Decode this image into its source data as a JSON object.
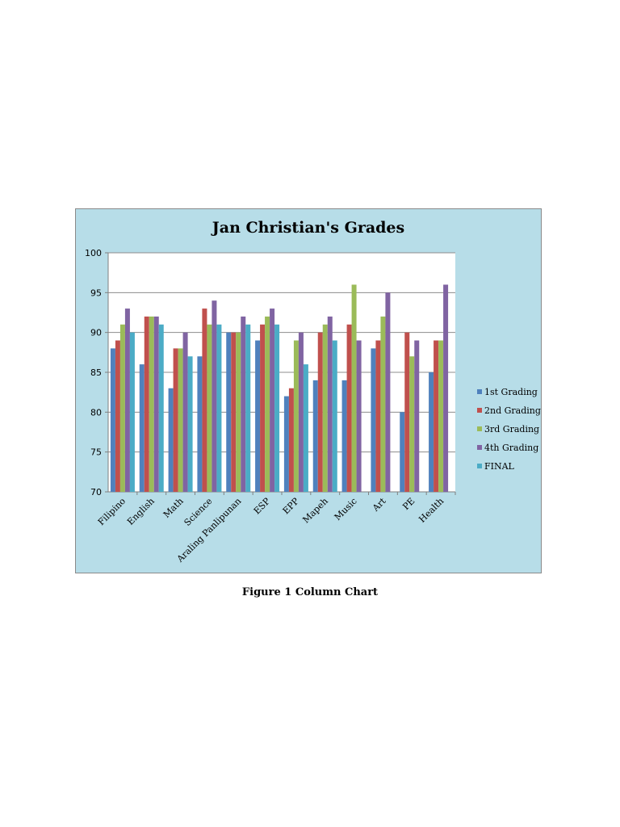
{
  "figure_caption": "Figure 1 Column Chart",
  "chart_data": {
    "type": "bar",
    "title": "Jan Christian's Grades",
    "xlabel": "",
    "ylabel": "",
    "ylim": [
      70,
      100
    ],
    "yticks": [
      70,
      75,
      80,
      85,
      90,
      95,
      100
    ],
    "grid": true,
    "legend_position": "right",
    "categories": [
      "Filipino",
      "English",
      "Math",
      "Science",
      "Araling Panlipunan",
      "ESP",
      "EPP",
      "Mapeh",
      "Music",
      "Art",
      "PE",
      "Health"
    ],
    "series": [
      {
        "name": "1st Grading",
        "color": "#4f81bd",
        "values": [
          88,
          86,
          83,
          87,
          90,
          89,
          82,
          84,
          84,
          88,
          80,
          85
        ]
      },
      {
        "name": "2nd Grading",
        "color": "#c0504d",
        "values": [
          89,
          92,
          88,
          93,
          90,
          91,
          83,
          90,
          91,
          89,
          90,
          89
        ]
      },
      {
        "name": "3rd Grading",
        "color": "#9bbb59",
        "values": [
          91,
          92,
          88,
          91,
          90,
          92,
          89,
          91,
          96,
          92,
          87,
          89
        ]
      },
      {
        "name": "4th Grading",
        "color": "#8064a2",
        "values": [
          93,
          92,
          90,
          94,
          92,
          93,
          90,
          92,
          89,
          95,
          89,
          96
        ]
      },
      {
        "name": "FINAL",
        "color": "#4bacc6",
        "values": [
          90,
          91,
          87,
          91,
          91,
          91,
          86,
          89,
          null,
          null,
          null,
          null
        ]
      }
    ],
    "colors": {
      "frame_background": "#b7dde8",
      "plot_background": "#ffffff",
      "gridline": "#8c8c8c"
    }
  }
}
